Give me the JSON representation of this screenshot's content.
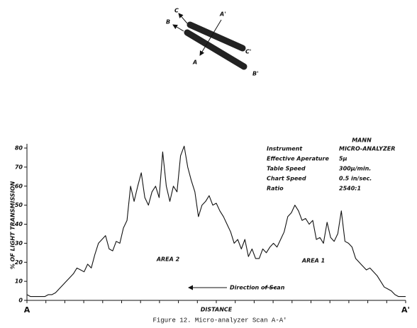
{
  "chart_data": {
    "type": "line",
    "y_label": "% OF LIGHT TRANSMISSION",
    "x_label": "DISTANCE",
    "caption": "Figure 12. Micro-analyzer Scan A-A'",
    "annotations": [
      "AREA 2",
      "AREA 1",
      "Direction of Scan"
    ],
    "info": {
      "header": "MANN",
      "rows": [
        [
          "Instrument",
          "MICRO-ANALYZER"
        ],
        [
          "Effective Aperature",
          "5μ"
        ],
        [
          "Table Speed",
          "300μ/min."
        ],
        [
          "Chart Speed",
          "0.5 in/sec."
        ],
        [
          "Ratio",
          "2540:1"
        ]
      ]
    },
    "color": "#111111",
    "ylim": [
      0,
      80
    ],
    "yticks": [
      0,
      10,
      20,
      30,
      40,
      50,
      60,
      70,
      80
    ],
    "categories": [
      "A",
      null,
      null,
      null,
      null,
      null,
      null,
      null,
      null,
      null,
      null,
      null,
      null,
      null,
      null,
      null,
      null,
      null,
      null,
      null,
      null,
      null,
      null,
      null,
      null,
      null,
      null,
      null,
      null,
      null,
      null,
      null,
      null,
      null,
      null,
      null,
      null,
      null,
      null,
      null,
      null,
      null,
      null,
      null,
      null,
      null,
      null,
      null,
      null,
      null,
      null,
      null,
      null,
      null,
      null,
      null,
      null,
      null,
      null,
      null,
      null,
      null,
      null,
      null,
      null,
      null,
      null,
      null,
      null,
      null,
      null,
      null,
      null,
      null,
      null,
      null,
      null,
      null,
      null,
      null,
      null,
      null,
      null,
      null,
      null,
      null,
      null,
      null,
      null,
      null,
      null,
      null,
      null,
      null,
      null,
      null,
      null,
      null,
      null,
      null,
      null,
      null,
      null,
      null,
      null,
      null,
      "A'"
    ],
    "values": [
      3,
      2,
      2,
      2,
      2,
      2,
      3,
      3,
      4,
      6,
      8,
      10,
      12,
      14,
      17,
      16,
      15,
      19,
      17,
      24,
      30,
      32,
      34,
      27,
      26,
      31,
      30,
      38,
      42,
      60,
      52,
      60,
      67,
      54,
      50,
      57,
      60,
      54,
      78,
      60,
      52,
      60,
      57,
      76,
      81,
      70,
      63,
      57,
      44,
      50,
      52,
      55,
      50,
      51,
      47,
      44,
      40,
      36,
      30,
      32,
      27,
      32,
      23,
      27,
      22,
      22,
      27,
      25,
      28,
      30,
      28,
      32,
      36,
      44,
      46,
      50,
      47,
      42,
      43,
      40,
      42,
      32,
      33,
      30,
      41,
      33,
      31,
      35,
      47,
      31,
      30,
      28,
      22,
      20,
      18,
      16,
      17,
      15,
      13,
      10,
      7,
      6,
      5,
      3,
      2,
      2,
      2
    ]
  },
  "diagram": {
    "labels": [
      "C",
      "C'",
      "A'",
      "A",
      "B",
      "B'"
    ]
  }
}
